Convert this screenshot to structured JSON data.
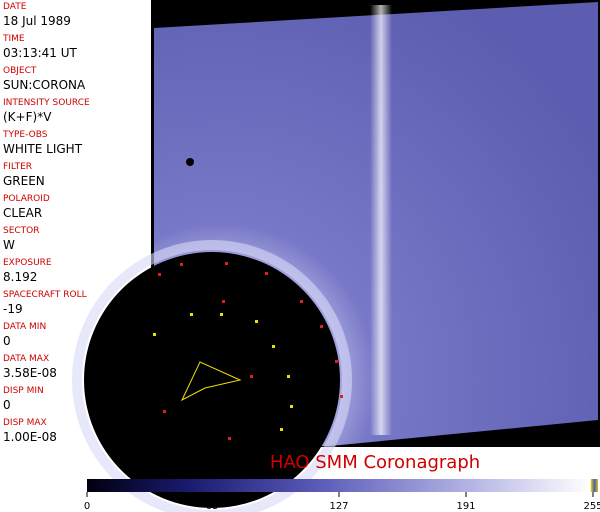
{
  "fields": [
    {
      "label": "DATE",
      "value": "18 Jul 1989"
    },
    {
      "label": "TIME",
      "value": "03:13:41 UT"
    },
    {
      "label": "OBJECT",
      "value": "SUN:CORONA"
    },
    {
      "label": "INTENSITY SOURCE",
      "value": "(K+F)*V"
    },
    {
      "label": "TYPE-OBS",
      "value": "WHITE LIGHT"
    },
    {
      "label": "FILTER",
      "value": "GREEN"
    },
    {
      "label": "POLAROID",
      "value": "CLEAR"
    },
    {
      "label": "SECTOR",
      "value": "W"
    },
    {
      "label": "EXPOSURE",
      "value": "8.192"
    },
    {
      "label": "SPACECRAFT ROLL",
      "value": "-19"
    },
    {
      "label": "DATA MIN",
      "value": "0"
    },
    {
      "label": "DATA MAX",
      "value": "3.58E-08"
    },
    {
      "label": "DISP MIN",
      "value": "0"
    },
    {
      "label": "DISP MAX",
      "value": "1.00E-08"
    }
  ],
  "title": "HAO  SMM  Coronagraph",
  "colorbar": {
    "range": [
      0,
      255
    ],
    "ticks": [
      0,
      63,
      127,
      191,
      255
    ]
  }
}
